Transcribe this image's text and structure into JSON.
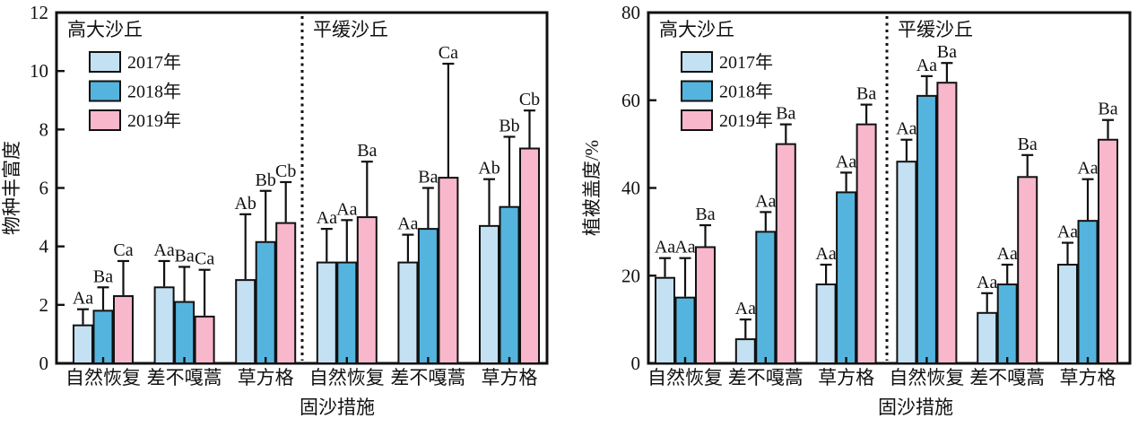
{
  "chart_data": [
    {
      "type": "bar",
      "title": "",
      "ylabel": "物种丰富度",
      "xlabel": "固沙措施",
      "ylim": [
        0,
        12
      ],
      "yticks": [
        0,
        2,
        4,
        6,
        8,
        10,
        12
      ],
      "grid": false,
      "legend_position": "top-left-inside",
      "legend": [
        "2017年",
        "2018年",
        "2019年"
      ],
      "panel_labels": [
        "高大沙丘",
        "平缓沙丘"
      ],
      "panel_split_index": 3,
      "categories": [
        "自然恢复",
        "差不嘎蒿",
        "草方格",
        "自然恢复",
        "差不嘎蒿",
        "草方格"
      ],
      "series": [
        {
          "name": "2017年",
          "color": "#c3e1f2",
          "values": [
            1.3,
            2.6,
            2.85,
            3.45,
            3.45,
            4.7
          ],
          "errors_plus": [
            0.55,
            0.9,
            2.25,
            1.15,
            0.95,
            1.6
          ],
          "sig_labels": [
            "Aa",
            "Aa",
            "Ab",
            "Aa",
            "Aa",
            "Ab"
          ]
        },
        {
          "name": "2018年",
          "color": "#55b4dd",
          "values": [
            1.8,
            2.1,
            4.15,
            3.45,
            4.6,
            5.35
          ],
          "errors_plus": [
            0.8,
            1.2,
            1.75,
            1.45,
            1.4,
            2.4
          ],
          "sig_labels": [
            "Ba",
            "Ba",
            "Bb",
            "Aa",
            "Ba",
            "Bb"
          ]
        },
        {
          "name": "2019年",
          "color": "#f8b7cb",
          "values": [
            2.3,
            1.6,
            4.8,
            5.0,
            6.35,
            7.35
          ],
          "errors_plus": [
            1.2,
            1.6,
            1.4,
            1.9,
            3.9,
            1.3
          ],
          "sig_labels": [
            "Ca",
            "Ca",
            "Cb",
            "Ba",
            "Ca",
            "Cb"
          ]
        }
      ]
    },
    {
      "type": "bar",
      "title": "",
      "ylabel": "植被盖度/%",
      "xlabel": "固沙措施",
      "ylim": [
        0,
        80
      ],
      "yticks": [
        0,
        20,
        40,
        60,
        80
      ],
      "grid": false,
      "legend_position": "top-left-inside",
      "legend": [
        "2017年",
        "2018年",
        "2019年"
      ],
      "panel_labels": [
        "高大沙丘",
        "平缓沙丘"
      ],
      "panel_split_index": 3,
      "categories": [
        "自然恢复",
        "差不嘎蒿",
        "草方格",
        "自然恢复",
        "差不嘎蒿",
        "草方格"
      ],
      "series": [
        {
          "name": "2017年",
          "color": "#c3e1f2",
          "values": [
            19.5,
            5.5,
            18,
            46,
            11.5,
            22.5
          ],
          "errors_plus": [
            4.5,
            4.5,
            4.5,
            5,
            4.5,
            5
          ],
          "sig_labels": [
            "Aa",
            "Aa",
            "Aa",
            "Aa",
            "Aa",
            "Aa"
          ]
        },
        {
          "name": "2018年",
          "color": "#55b4dd",
          "values": [
            15,
            30,
            39,
            61,
            18,
            32.5
          ],
          "errors_plus": [
            9,
            4.5,
            4.5,
            4.5,
            4.5,
            9.5
          ],
          "sig_labels": [
            "Aa",
            "Aa",
            "Aa",
            "Aa",
            "Aa",
            "Aa"
          ]
        },
        {
          "name": "2019年",
          "color": "#f8b7cb",
          "values": [
            26.5,
            50,
            54.5,
            64,
            42.5,
            51
          ],
          "errors_plus": [
            5,
            4.5,
            4.5,
            4.5,
            5,
            4.5
          ],
          "sig_labels": [
            "Ba",
            "Ba",
            "Ba",
            "Ba",
            "Ba",
            "Ba"
          ]
        }
      ]
    }
  ],
  "figure": {
    "bar_outline_color": "#111111",
    "background_color": "#ffffff"
  }
}
